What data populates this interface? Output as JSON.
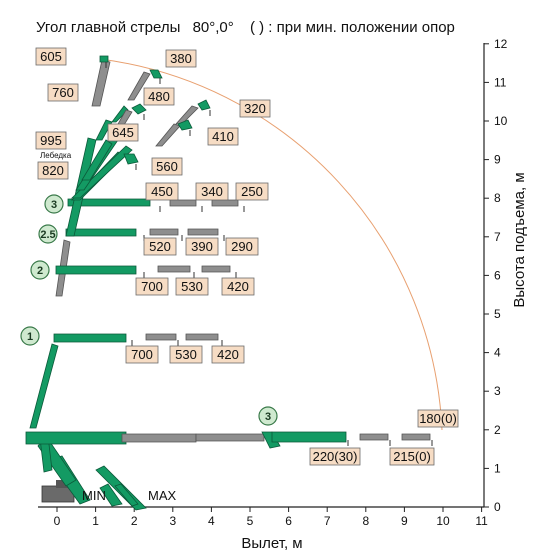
{
  "title": {
    "main": "Угол главной стрелы",
    "angles": "80°,0°",
    "note": "( ) : при мин. положении опор"
  },
  "axes": {
    "x_label": "Вылет, м",
    "y_label": "Высота подъема, м",
    "x_ticks": [
      "0",
      "1",
      "2",
      "3",
      "4",
      "5",
      "6",
      "7",
      "8",
      "9",
      "10",
      "11"
    ],
    "y_ticks": [
      "0",
      "1",
      "2",
      "3",
      "4",
      "5",
      "6",
      "7",
      "8",
      "9",
      "10",
      "11",
      "12"
    ]
  },
  "colors": {
    "boom": "#139a63",
    "boom_extended": "#8e8e8e",
    "label_fill": "#f6dcc4",
    "arc": "#e8a070"
  },
  "outrigger": {
    "min_label": "MIN",
    "max_label": "MAX"
  },
  "winch_label": "Лебедка",
  "markers": [
    {
      "id": "m1",
      "text": "1"
    },
    {
      "id": "m2",
      "text": "2"
    },
    {
      "id": "m25",
      "text": "2.5"
    },
    {
      "id": "m3a",
      "text": "3"
    },
    {
      "id": "m3b",
      "text": "3"
    }
  ],
  "labels": [
    {
      "id": "l605",
      "text": "605"
    },
    {
      "id": "l380",
      "text": "380"
    },
    {
      "id": "l760",
      "text": "760"
    },
    {
      "id": "l480",
      "text": "480"
    },
    {
      "id": "l645",
      "text": "645"
    },
    {
      "id": "l320",
      "text": "320"
    },
    {
      "id": "l410",
      "text": "410"
    },
    {
      "id": "l995",
      "text": "995"
    },
    {
      "id": "l820",
      "text": "820"
    },
    {
      "id": "l560",
      "text": "560"
    },
    {
      "id": "l450",
      "text": "450"
    },
    {
      "id": "l340",
      "text": "340"
    },
    {
      "id": "l250",
      "text": "250"
    },
    {
      "id": "l520",
      "text": "520"
    },
    {
      "id": "l390",
      "text": "390"
    },
    {
      "id": "l290",
      "text": "290"
    },
    {
      "id": "l700a",
      "text": "700"
    },
    {
      "id": "l530a",
      "text": "530"
    },
    {
      "id": "l420a",
      "text": "420"
    },
    {
      "id": "l700b",
      "text": "700"
    },
    {
      "id": "l530b",
      "text": "530"
    },
    {
      "id": "l420b",
      "text": "420"
    },
    {
      "id": "l180",
      "text": "180(0)"
    },
    {
      "id": "l220",
      "text": "220(30)"
    },
    {
      "id": "l215",
      "text": "215(0)"
    }
  ]
}
